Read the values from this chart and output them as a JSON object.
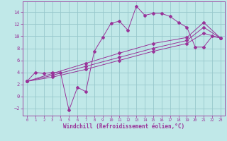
{
  "xlabel": "Windchill (Refroidissement éolien,°C)",
  "xlim": [
    -0.5,
    23.5
  ],
  "ylim": [
    -3.2,
    15.8
  ],
  "yticks": [
    -2,
    0,
    2,
    4,
    6,
    8,
    10,
    12,
    14
  ],
  "xticks": [
    0,
    1,
    2,
    3,
    4,
    5,
    6,
    7,
    8,
    9,
    10,
    11,
    12,
    13,
    14,
    15,
    16,
    17,
    18,
    19,
    20,
    21,
    22,
    23
  ],
  "bg_color": "#c0e8e8",
  "grid_color": "#98c8cc",
  "line_color": "#993399",
  "series_main": [
    [
      0,
      2.5
    ],
    [
      1,
      4.0
    ],
    [
      2,
      3.8
    ],
    [
      3,
      4.0
    ],
    [
      4,
      3.9
    ],
    [
      5,
      -2.3
    ],
    [
      6,
      1.5
    ],
    [
      7,
      0.8
    ],
    [
      8,
      7.5
    ],
    [
      9,
      9.8
    ],
    [
      10,
      12.2
    ],
    [
      11,
      12.5
    ],
    [
      12,
      11.0
    ],
    [
      13,
      15.0
    ],
    [
      14,
      13.5
    ],
    [
      15,
      13.8
    ],
    [
      16,
      13.8
    ],
    [
      17,
      13.3
    ],
    [
      18,
      12.3
    ],
    [
      19,
      11.5
    ],
    [
      20,
      8.2
    ],
    [
      21,
      8.2
    ],
    [
      22,
      10.0
    ],
    [
      23,
      9.7
    ]
  ],
  "series_line1": [
    [
      0,
      2.5
    ],
    [
      3,
      3.5
    ],
    [
      7,
      5.0
    ],
    [
      11,
      6.5
    ],
    [
      15,
      8.0
    ],
    [
      19,
      9.3
    ],
    [
      21,
      11.5
    ],
    [
      23,
      9.7
    ]
  ],
  "series_line2": [
    [
      0,
      2.5
    ],
    [
      3,
      3.2
    ],
    [
      7,
      4.5
    ],
    [
      11,
      6.0
    ],
    [
      15,
      7.5
    ],
    [
      19,
      8.8
    ],
    [
      21,
      10.5
    ],
    [
      23,
      9.7
    ]
  ],
  "series_line3": [
    [
      0,
      2.5
    ],
    [
      3,
      3.8
    ],
    [
      7,
      5.5
    ],
    [
      11,
      7.2
    ],
    [
      15,
      8.8
    ],
    [
      19,
      9.8
    ],
    [
      21,
      12.3
    ],
    [
      23,
      9.7
    ]
  ]
}
